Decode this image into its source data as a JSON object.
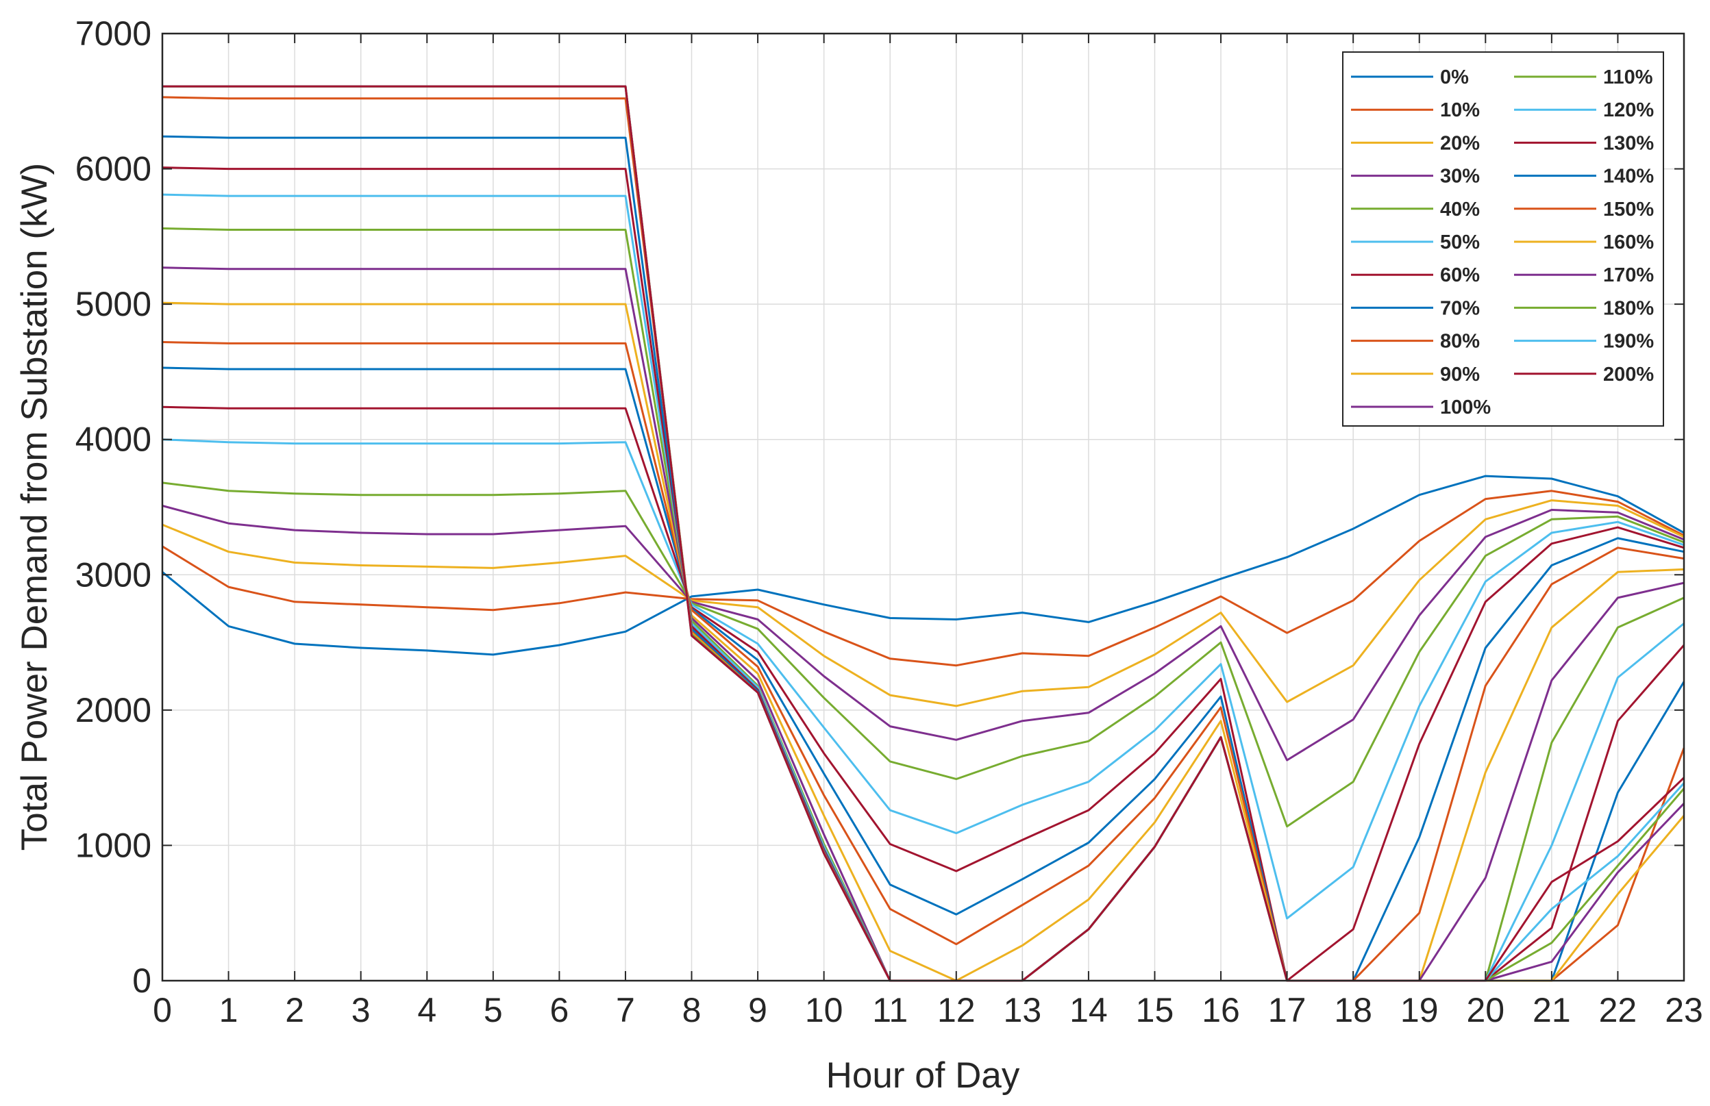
{
  "chart_data": {
    "type": "line",
    "title": "",
    "xlabel": "Hour of Day",
    "ylabel": "Total Power Demand from Substation (kW)",
    "ylim": [
      0,
      7000
    ],
    "yticks": [
      0,
      1000,
      2000,
      3000,
      4000,
      5000,
      6000,
      7000
    ],
    "x": [
      0,
      1,
      2,
      3,
      4,
      5,
      6,
      7,
      8,
      9,
      10,
      11,
      12,
      13,
      14,
      15,
      16,
      17,
      18,
      19,
      20,
      21,
      22,
      23
    ],
    "grid": true,
    "legend_position": "top-right",
    "legend_columns": 2,
    "series": [
      {
        "name": "0%",
        "color": "#0072BD",
        "values": [
          3020,
          2620,
          2490,
          2460,
          2440,
          2410,
          2480,
          2580,
          2840,
          2890,
          2780,
          2680,
          2670,
          2720,
          2650,
          2800,
          2970,
          3130,
          3340,
          3590,
          3730,
          3710,
          3580,
          3310
        ]
      },
      {
        "name": "10%",
        "color": "#D95319",
        "values": [
          3210,
          2910,
          2800,
          2780,
          2760,
          2740,
          2790,
          2870,
          2820,
          2810,
          2580,
          2380,
          2330,
          2420,
          2400,
          2610,
          2840,
          2570,
          2810,
          3250,
          3560,
          3620,
          3540,
          3290
        ]
      },
      {
        "name": "20%",
        "color": "#EDB120",
        "values": [
          3370,
          3170,
          3090,
          3070,
          3060,
          3050,
          3090,
          3140,
          2810,
          2760,
          2400,
          2110,
          2030,
          2140,
          2170,
          2410,
          2720,
          2060,
          2330,
          2960,
          3410,
          3550,
          3510,
          3280
        ]
      },
      {
        "name": "30%",
        "color": "#7E2F8E",
        "values": [
          3510,
          3380,
          3330,
          3310,
          3300,
          3300,
          3330,
          3360,
          2800,
          2670,
          2250,
          1880,
          1780,
          1920,
          1980,
          2270,
          2620,
          1630,
          1930,
          2700,
          3280,
          3480,
          3460,
          3260
        ]
      },
      {
        "name": "40%",
        "color": "#77AC30",
        "values": [
          3680,
          3620,
          3600,
          3590,
          3590,
          3590,
          3600,
          3620,
          2790,
          2600,
          2090,
          1620,
          1490,
          1660,
          1770,
          2100,
          2500,
          1140,
          1470,
          2430,
          3140,
          3410,
          3430,
          3240
        ]
      },
      {
        "name": "50%",
        "color": "#4DBEEE",
        "values": [
          4000,
          3980,
          3970,
          3970,
          3970,
          3970,
          3970,
          3980,
          2780,
          2490,
          1870,
          1260,
          1090,
          1300,
          1470,
          1850,
          2340,
          460,
          840,
          2030,
          2950,
          3310,
          3390,
          3220
        ]
      },
      {
        "name": "60%",
        "color": "#A2142F",
        "values": [
          4240,
          4230,
          4230,
          4230,
          4230,
          4230,
          4230,
          4230,
          2760,
          2430,
          1680,
          1010,
          810,
          1040,
          1260,
          1680,
          2230,
          0,
          380,
          1750,
          2800,
          3230,
          3350,
          3200
        ]
      },
      {
        "name": "70%",
        "color": "#0072BD",
        "values": [
          4530,
          4520,
          4520,
          4520,
          4520,
          4520,
          4520,
          4520,
          2750,
          2370,
          1530,
          710,
          490,
          750,
          1020,
          1490,
          2100,
          0,
          0,
          1060,
          2460,
          3070,
          3270,
          3170
        ]
      },
      {
        "name": "80%",
        "color": "#D95319",
        "values": [
          4720,
          4710,
          4710,
          4710,
          4710,
          4710,
          4710,
          4710,
          2740,
          2320,
          1370,
          530,
          270,
          560,
          850,
          1350,
          2020,
          0,
          0,
          500,
          2180,
          2930,
          3200,
          3120
        ]
      },
      {
        "name": "90%",
        "color": "#EDB120",
        "values": [
          5010,
          5000,
          5000,
          5000,
          5000,
          5000,
          5000,
          5000,
          2700,
          2270,
          1220,
          220,
          0,
          260,
          600,
          1170,
          1920,
          0,
          0,
          0,
          1540,
          2610,
          3020,
          3040
        ]
      },
      {
        "name": "100%",
        "color": "#7E2F8E",
        "values": [
          5270,
          5260,
          5260,
          5260,
          5260,
          5260,
          5260,
          5260,
          2680,
          2220,
          1080,
          0,
          0,
          0,
          380,
          990,
          1800,
          0,
          0,
          0,
          760,
          2220,
          2830,
          2940
        ]
      },
      {
        "name": "110%",
        "color": "#77AC30",
        "values": [
          5560,
          5550,
          5550,
          5550,
          5550,
          5550,
          5550,
          5550,
          2660,
          2180,
          1010,
          0,
          0,
          0,
          380,
          990,
          1800,
          0,
          0,
          0,
          0,
          1760,
          2610,
          2830
        ]
      },
      {
        "name": "120%",
        "color": "#4DBEEE",
        "values": [
          5810,
          5800,
          5800,
          5800,
          5800,
          5800,
          5800,
          5800,
          2640,
          2170,
          990,
          0,
          0,
          0,
          380,
          990,
          1800,
          0,
          0,
          0,
          0,
          1000,
          2240,
          2640
        ]
      },
      {
        "name": "130%",
        "color": "#A2142F",
        "values": [
          6010,
          6000,
          6000,
          6000,
          6000,
          6000,
          6000,
          6000,
          2620,
          2150,
          970,
          0,
          0,
          0,
          380,
          990,
          1800,
          0,
          0,
          0,
          0,
          390,
          1920,
          2480
        ]
      },
      {
        "name": "140%",
        "color": "#0072BD",
        "values": [
          6240,
          6230,
          6230,
          6230,
          6230,
          6230,
          6230,
          6230,
          2600,
          2140,
          960,
          0,
          0,
          0,
          380,
          990,
          1800,
          0,
          0,
          0,
          0,
          0,
          1390,
          2210
        ]
      },
      {
        "name": "150%",
        "color": "#D95319",
        "values": [
          6530,
          6520,
          6520,
          6520,
          6520,
          6520,
          6520,
          6520,
          2580,
          2130,
          950,
          0,
          0,
          0,
          380,
          990,
          1800,
          0,
          0,
          0,
          0,
          0,
          410,
          1720
        ]
      },
      {
        "name": "160%",
        "color": "#EDB120",
        "values": [
          6610,
          6610,
          6610,
          6610,
          6610,
          6610,
          6610,
          6610,
          2570,
          2130,
          940,
          0,
          0,
          0,
          380,
          990,
          1800,
          0,
          0,
          0,
          0,
          0,
          640,
          1220
        ]
      },
      {
        "name": "170%",
        "color": "#7E2F8E",
        "values": [
          6610,
          6610,
          6610,
          6610,
          6610,
          6610,
          6610,
          6610,
          2560,
          2130,
          940,
          0,
          0,
          0,
          380,
          990,
          1800,
          0,
          0,
          0,
          0,
          140,
          800,
          1310
        ]
      },
      {
        "name": "180%",
        "color": "#77AC30",
        "values": [
          6610,
          6610,
          6610,
          6610,
          6610,
          6610,
          6610,
          6610,
          2560,
          2130,
          940,
          0,
          0,
          0,
          380,
          990,
          1800,
          0,
          0,
          0,
          0,
          280,
          850,
          1420
        ]
      },
      {
        "name": "190%",
        "color": "#4DBEEE",
        "values": [
          6610,
          6610,
          6610,
          6610,
          6610,
          6610,
          6610,
          6610,
          2550,
          2130,
          940,
          0,
          0,
          0,
          380,
          990,
          1800,
          0,
          0,
          0,
          0,
          530,
          920,
          1460
        ]
      },
      {
        "name": "200%",
        "color": "#A2142F",
        "values": [
          6610,
          6610,
          6610,
          6610,
          6610,
          6610,
          6610,
          6610,
          2550,
          2130,
          940,
          0,
          0,
          0,
          380,
          990,
          1800,
          0,
          0,
          0,
          0,
          730,
          1030,
          1500
        ]
      }
    ]
  }
}
